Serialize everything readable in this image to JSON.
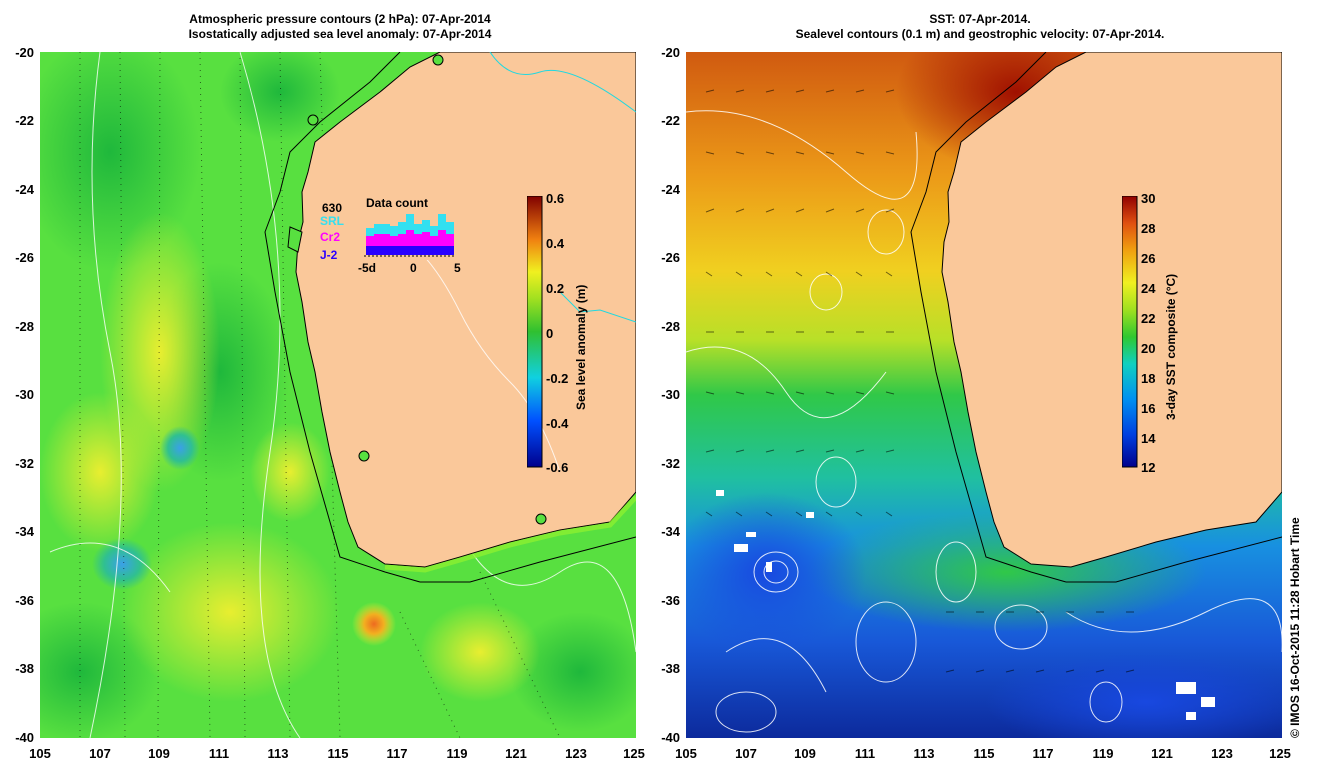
{
  "left_panel": {
    "title_line1": "Atmospheric pressure contours (2 hPa): 07-Apr-2014",
    "title_line2": "Isostatically adjusted sea level anomaly: 07-Apr-2014",
    "colorbar": {
      "label": "Sea level anomaly (m)",
      "ticks": [
        "0.6",
        "0.4",
        "0.2",
        "0",
        "-0.2",
        "-0.4",
        "-0.6"
      ],
      "range": [
        -0.6,
        0.6
      ]
    },
    "inset": {
      "title": "Data count",
      "total": "630",
      "legend": [
        {
          "name": "SRL",
          "color": "#33e0f0"
        },
        {
          "name": "Cr2",
          "color": "#ff00ff"
        },
        {
          "name": "J-2",
          "color": "#2a00ff"
        }
      ],
      "x_ticks": [
        "-5d",
        "0",
        "5"
      ]
    }
  },
  "right_panel": {
    "title_line1": "SST: 07-Apr-2014.",
    "title_line2": "Sealevel contours (0.1 m) and geostrophic velocity: 07-Apr-2014.",
    "colorbar": {
      "label": "3-day SST composite (°C)",
      "ticks": [
        "30",
        "28",
        "26",
        "24",
        "22",
        "20",
        "18",
        "16",
        "14",
        "12"
      ],
      "range": [
        12,
        30
      ]
    }
  },
  "axes": {
    "lat_ticks": [
      "-20",
      "-22",
      "-24",
      "-26",
      "-28",
      "-30",
      "-32",
      "-34",
      "-36",
      "-38",
      "-40"
    ],
    "lon_ticks": [
      "105",
      "107",
      "109",
      "111",
      "113",
      "115",
      "117",
      "119",
      "121",
      "123",
      "125"
    ]
  },
  "colors": {
    "land": "#fac89a",
    "ocean_sla_base": "#58e040",
    "coast_line": "#000000"
  },
  "copyright": "© IMOS 16-Oct-2015 11:28 Hobart Time"
}
